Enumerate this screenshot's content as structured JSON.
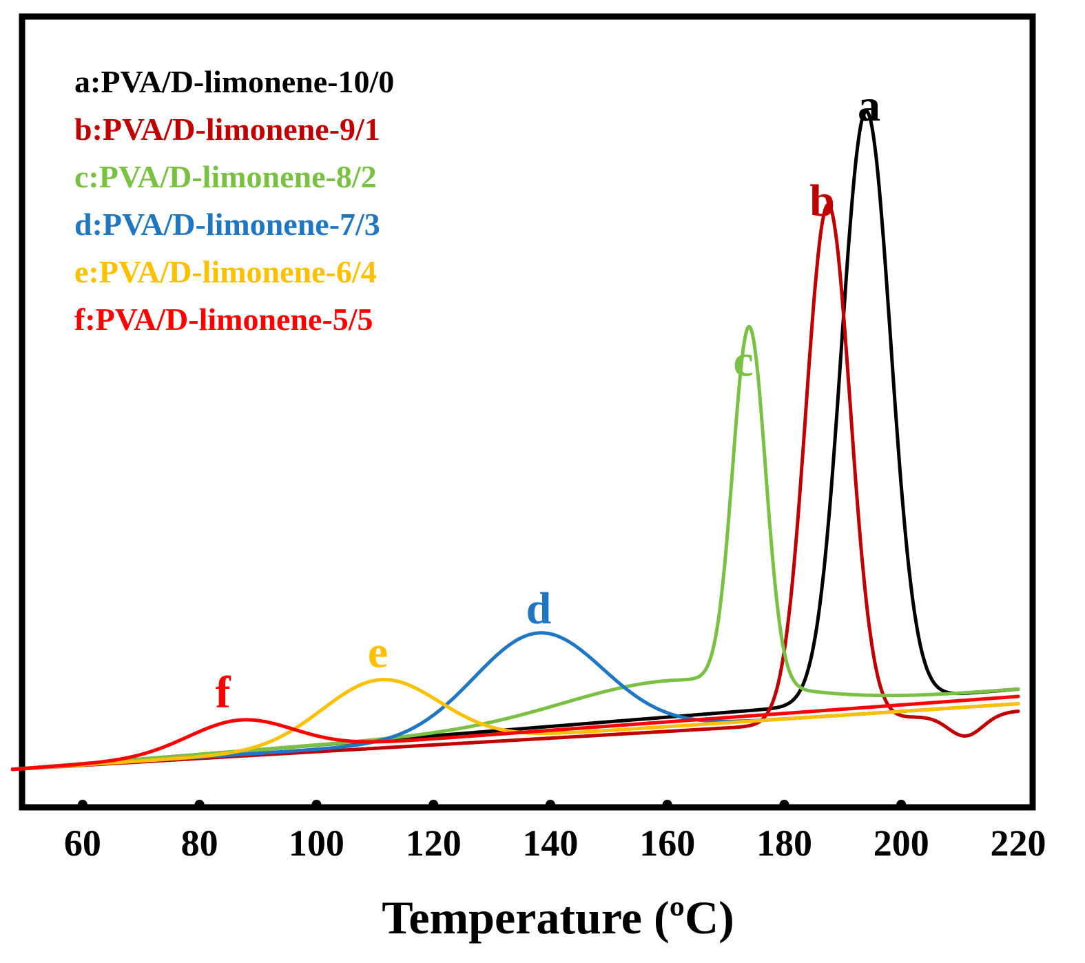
{
  "chart_data": {
    "type": "line",
    "title": "",
    "xlabel": "Temperature (ºC)",
    "ylabel": "",
    "xlim": [
      48,
      220
    ],
    "ylim": [
      0,
      100
    ],
    "xticks": [
      60,
      80,
      100,
      120,
      140,
      160,
      180,
      200,
      220
    ],
    "legend_position": "top-left",
    "series": [
      {
        "id": "a",
        "name": "a:PVA/D-limonene-10/0",
        "label": "a",
        "color": "#000000",
        "baseline_start": 2,
        "baseline_end": 13,
        "peaks": [
          {
            "center": 194,
            "height": 81,
            "width": 4.2
          }
        ],
        "label_x": 194.5,
        "label_y": 91
      },
      {
        "id": "b",
        "name": "b:PVA/D-limonene-9/1",
        "label": "b",
        "color": "#c00000",
        "baseline_start": 2,
        "baseline_end": 10,
        "peaks": [
          {
            "center": 187.5,
            "height": 71,
            "width": 3.8
          },
          {
            "center": 211,
            "height": -3,
            "width": 3
          }
        ],
        "label_x": 186.5,
        "label_y": 78
      },
      {
        "id": "c",
        "name": "c:PVA/D-limonene-8/2",
        "label": "c",
        "color": "#7ac143",
        "baseline_start": 2,
        "baseline_end": 13,
        "peaks": [
          {
            "center": 174,
            "height": 49,
            "width": 2.8
          },
          {
            "center": 160,
            "height": 5,
            "width": 18
          }
        ],
        "label_x": 173,
        "label_y": 56
      },
      {
        "id": "d",
        "name": "d:PVA/D-limonene-7/3",
        "label": "d",
        "color": "#1f77c4",
        "baseline_start": 2,
        "baseline_end": 11,
        "peaks": [
          {
            "center": 138,
            "height": 14,
            "width": 11
          }
        ],
        "label_x": 138,
        "label_y": 22
      },
      {
        "id": "e",
        "name": "e:PVA/D-limonene-6/4",
        "label": "e",
        "color": "#ffc000",
        "baseline_start": 2,
        "baseline_end": 11,
        "peaks": [
          {
            "center": 111,
            "height": 9,
            "width": 10
          }
        ],
        "label_x": 110.5,
        "label_y": 16
      },
      {
        "id": "f",
        "name": "f:PVA/D-limonene-5/5",
        "label": "f",
        "color": "#ff0000",
        "baseline_start": 2,
        "baseline_end": 12,
        "peaks": [
          {
            "center": 87,
            "height": 4.5,
            "width": 9
          }
        ],
        "label_x": 84,
        "label_y": 10.5
      }
    ]
  }
}
